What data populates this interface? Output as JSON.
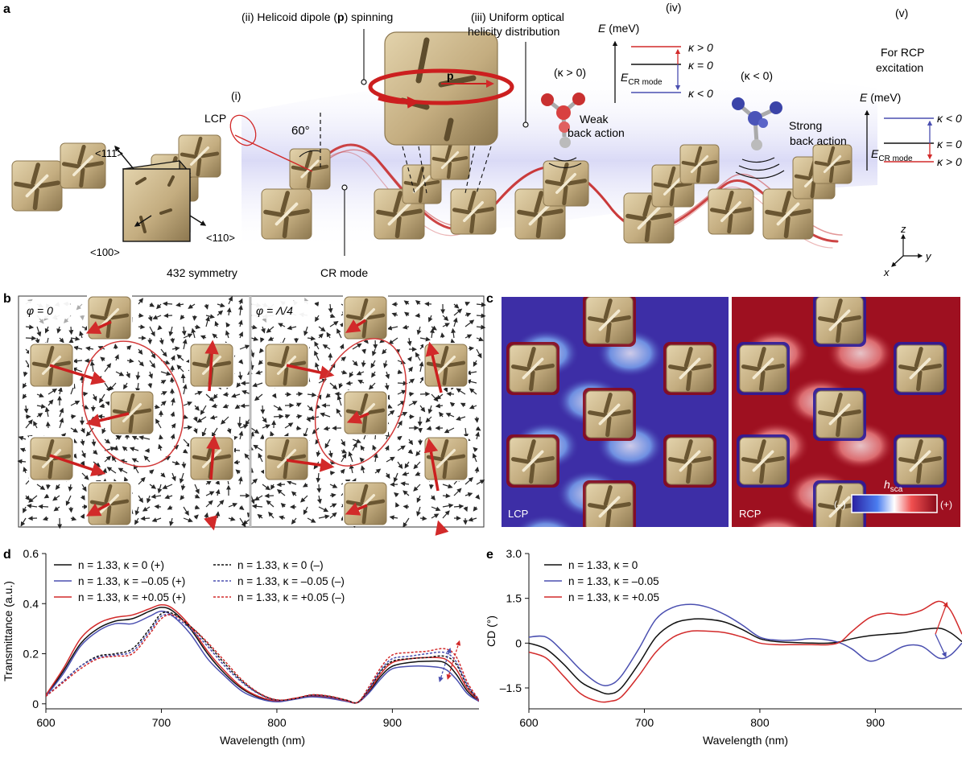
{
  "figure": {
    "panel_letters": {
      "a": "a",
      "b": "b",
      "c": "c",
      "d": "d",
      "e": "e"
    },
    "colors": {
      "gold": "#c8b48a",
      "gold_dark": "#8f7a52",
      "red": "#d22a2a",
      "blue": "#4a4fb0",
      "deep_blue": "#3a2aa0",
      "deep_red": "#9e1020",
      "black": "#111111"
    }
  },
  "panel_a": {
    "label_i": "(i)",
    "label_ii": "(ii) Helicoid dipole (",
    "label_ii_p": "p",
    "label_ii_end": ") spinning",
    "label_iii_l1": "(iii) Uniform optical",
    "label_iii_l2": "helicity distribution",
    "label_iv": "(iv)",
    "label_v": "(v)",
    "lcp": "LCP",
    "angle": "60°",
    "dir_111": "<111>",
    "dir_110": "<110>",
    "dir_100": "<100>",
    "symmetry": "432 symmetry",
    "cr_mode": "CR mode",
    "dipole_p": "p",
    "kappa_pos_mol": "(κ > 0)",
    "kappa_neg_mol": "(κ < 0)",
    "weak_l1": "Weak",
    "weak_l2": "back action",
    "strong_l1": "Strong",
    "strong_l2": "back action",
    "rcp_l1": "For RCP",
    "rcp_l2": "excitation",
    "energy_label": "E (meV)",
    "energy_label_e": "E",
    "energy_label_unit": " (meV)",
    "ecr": "E",
    "ecr_sub": "CR mode",
    "lcp_levels": [
      "κ > 0",
      "κ = 0",
      "κ < 0"
    ],
    "rcp_levels": [
      "κ < 0",
      "κ = 0",
      "κ > 0"
    ],
    "axis_x": "x",
    "axis_y": "y",
    "axis_z": "z"
  },
  "panel_b": {
    "phase_1": "φ = 0",
    "phase_2": "φ = Λ/4"
  },
  "panel_c": {
    "left_label": "LCP",
    "right_label": "RCP",
    "colorbar_title": "h",
    "colorbar_sub": "sca",
    "colorbar_min": "(–)",
    "colorbar_max": "(+)"
  },
  "chart_data": [
    {
      "type": "line",
      "panel": "d",
      "xlabel": "Wavelength (nm)",
      "ylabel": "Transmittance (a.u.)",
      "xlim": [
        600,
        975
      ],
      "ylim": [
        -0.02,
        0.6
      ],
      "xticks": [
        600,
        700,
        800,
        900
      ],
      "xtick_labels": [
        "600",
        "700",
        "800",
        "900"
      ],
      "yticks": [
        0,
        0.2,
        0.4,
        0.6
      ],
      "ytick_labels": [
        "0",
        "0.2",
        "0.4",
        "0.6"
      ],
      "legend": [
        "n = 1.33, κ = 0 (+)",
        "n = 1.33, κ = –0.05 (+)",
        "n = 1.33, κ = +0.05 (+)",
        "n = 1.33, κ = 0 (–)",
        "n = 1.33, κ = –0.05 (–)",
        "n = 1.33, κ = +0.05 (–)"
      ],
      "x": [
        600,
        615,
        630,
        645,
        660,
        675,
        690,
        700,
        710,
        725,
        740,
        755,
        770,
        785,
        800,
        815,
        830,
        845,
        860,
        870,
        880,
        890,
        900,
        915,
        930,
        945,
        955,
        965,
        975
      ],
      "series": [
        {
          "name": "n = 1.33, κ = 0 (+)",
          "color": "#111111",
          "dash": false,
          "values": [
            0.03,
            0.13,
            0.24,
            0.3,
            0.33,
            0.34,
            0.37,
            0.385,
            0.37,
            0.3,
            0.2,
            0.12,
            0.06,
            0.025,
            0.01,
            0.02,
            0.03,
            0.025,
            0.012,
            0.005,
            0.05,
            0.11,
            0.15,
            0.165,
            0.17,
            0.165,
            0.12,
            0.05,
            0.01
          ]
        },
        {
          "name": "n = 1.33, κ = –0.05 (+)",
          "color": "#4a4fb0",
          "dash": false,
          "values": [
            0.03,
            0.12,
            0.23,
            0.29,
            0.32,
            0.32,
            0.35,
            0.37,
            0.35,
            0.28,
            0.18,
            0.11,
            0.05,
            0.02,
            0.008,
            0.018,
            0.028,
            0.022,
            0.01,
            0.005,
            0.045,
            0.1,
            0.14,
            0.15,
            0.15,
            0.14,
            0.1,
            0.04,
            0.01
          ]
        },
        {
          "name": "n = 1.33, κ = +0.05 (+)",
          "color": "#d22a2a",
          "dash": false,
          "values": [
            0.035,
            0.14,
            0.26,
            0.32,
            0.345,
            0.355,
            0.38,
            0.395,
            0.38,
            0.31,
            0.21,
            0.13,
            0.065,
            0.028,
            0.012,
            0.022,
            0.033,
            0.027,
            0.013,
            0.006,
            0.055,
            0.12,
            0.165,
            0.18,
            0.185,
            0.18,
            0.14,
            0.06,
            0.012
          ]
        },
        {
          "name": "n = 1.33, κ = 0 (–)",
          "color": "#111111",
          "dash": true,
          "values": [
            0.03,
            0.09,
            0.15,
            0.19,
            0.2,
            0.22,
            0.3,
            0.36,
            0.36,
            0.31,
            0.24,
            0.16,
            0.09,
            0.04,
            0.015,
            0.02,
            0.035,
            0.03,
            0.015,
            0.006,
            0.06,
            0.13,
            0.17,
            0.18,
            0.185,
            0.19,
            0.16,
            0.07,
            0.015
          ]
        },
        {
          "name": "n = 1.33, κ = –0.05 (–)",
          "color": "#4a4fb0",
          "dash": true,
          "values": [
            0.03,
            0.09,
            0.15,
            0.185,
            0.195,
            0.21,
            0.29,
            0.35,
            0.35,
            0.3,
            0.23,
            0.15,
            0.085,
            0.038,
            0.014,
            0.02,
            0.034,
            0.028,
            0.014,
            0.006,
            0.062,
            0.135,
            0.18,
            0.19,
            0.2,
            0.205,
            0.17,
            0.075,
            0.015
          ]
        },
        {
          "name": "n = 1.33, κ = +0.05 (–)",
          "color": "#d22a2a",
          "dash": true,
          "values": [
            0.03,
            0.085,
            0.14,
            0.18,
            0.19,
            0.2,
            0.28,
            0.34,
            0.355,
            0.31,
            0.245,
            0.17,
            0.095,
            0.042,
            0.016,
            0.021,
            0.036,
            0.031,
            0.015,
            0.006,
            0.07,
            0.145,
            0.195,
            0.205,
            0.21,
            0.22,
            0.19,
            0.085,
            0.016
          ]
        }
      ]
    },
    {
      "type": "line",
      "panel": "e",
      "xlabel": "Wavelength (nm)",
      "ylabel": "CD (°)",
      "xlim": [
        600,
        975
      ],
      "ylim": [
        -2.2,
        3.0
      ],
      "xticks": [
        600,
        700,
        800,
        900
      ],
      "xtick_labels": [
        "600",
        "700",
        "800",
        "900"
      ],
      "yticks": [
        -1.5,
        0,
        1.5,
        3.0
      ],
      "ytick_labels": [
        "–1.5",
        "0",
        "1.5",
        "3.0"
      ],
      "legend": [
        "n = 1.33, κ = 0",
        "n = 1.33, κ = –0.05",
        "n = 1.33, κ = +0.05"
      ],
      "x": [
        600,
        615,
        630,
        645,
        660,
        670,
        680,
        695,
        710,
        725,
        740,
        755,
        770,
        785,
        800,
        815,
        830,
        845,
        860,
        870,
        880,
        895,
        910,
        925,
        940,
        955,
        965,
        975
      ],
      "series": [
        {
          "name": "n = 1.33, κ = 0",
          "color": "#111111",
          "values": [
            0.0,
            -0.2,
            -0.7,
            -1.3,
            -1.6,
            -1.7,
            -1.5,
            -0.7,
            0.2,
            0.65,
            0.8,
            0.8,
            0.7,
            0.45,
            0.15,
            0.05,
            0.02,
            0.0,
            0.0,
            0.05,
            0.15,
            0.25,
            0.3,
            0.35,
            0.45,
            0.5,
            0.35,
            0.05
          ]
        },
        {
          "name": "n = 1.33, κ = –0.05",
          "color": "#4a4fb0",
          "values": [
            0.2,
            0.2,
            -0.3,
            -0.9,
            -1.35,
            -1.4,
            -1.1,
            -0.2,
            0.8,
            1.2,
            1.3,
            1.2,
            0.95,
            0.6,
            0.2,
            0.1,
            0.1,
            0.15,
            0.1,
            0.0,
            -0.2,
            -0.6,
            -0.4,
            -0.1,
            -0.1,
            -0.5,
            -0.4,
            0.0
          ]
        },
        {
          "name": "n = 1.33, κ = +0.05",
          "color": "#d22a2a",
          "values": [
            -0.3,
            -0.5,
            -1.1,
            -1.7,
            -1.95,
            -1.95,
            -1.8,
            -1.1,
            -0.3,
            0.2,
            0.4,
            0.4,
            0.35,
            0.2,
            0.0,
            -0.05,
            -0.05,
            -0.05,
            -0.05,
            0.05,
            0.4,
            0.85,
            1.0,
            0.95,
            1.1,
            1.4,
            1.1,
            0.3
          ]
        }
      ]
    }
  ]
}
